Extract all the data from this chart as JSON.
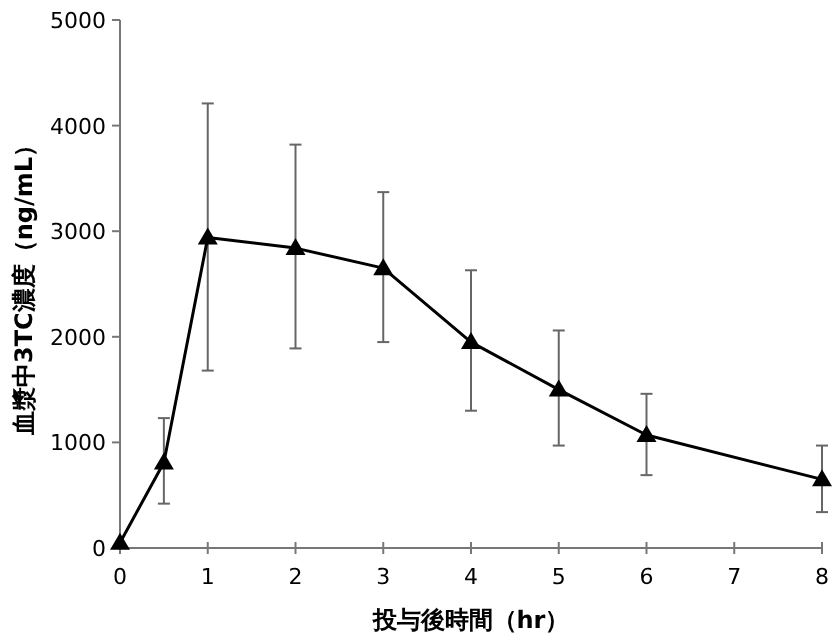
{
  "chart_data": {
    "type": "line",
    "xlabel": "投与後時間（hr）",
    "ylabel": "血漿中3TC濃度（ng/mL）",
    "x": [
      0,
      0.5,
      1,
      2,
      3,
      4,
      5,
      6,
      8
    ],
    "series": [
      {
        "color": "#000000",
        "values": [
          50,
          810,
          2940,
          2840,
          2650,
          1950,
          1500,
          1070,
          650
        ],
        "errors": [
          null,
          [
            420,
            1230
          ],
          [
            1680,
            4210
          ],
          [
            1890,
            3820
          ],
          [
            1950,
            3370
          ],
          [
            1300,
            2630
          ],
          [
            970,
            2060
          ],
          [
            690,
            1460
          ],
          [
            340,
            970
          ]
        ]
      }
    ],
    "xlim": [
      0,
      8
    ],
    "ylim": [
      0,
      5000
    ],
    "xticks": [
      0,
      1,
      2,
      3,
      4,
      5,
      6,
      7,
      8
    ],
    "yticks": [
      0,
      1000,
      2000,
      3000,
      4000,
      5000
    ],
    "marker": "triangle",
    "line_style": "solid",
    "grid": false
  }
}
